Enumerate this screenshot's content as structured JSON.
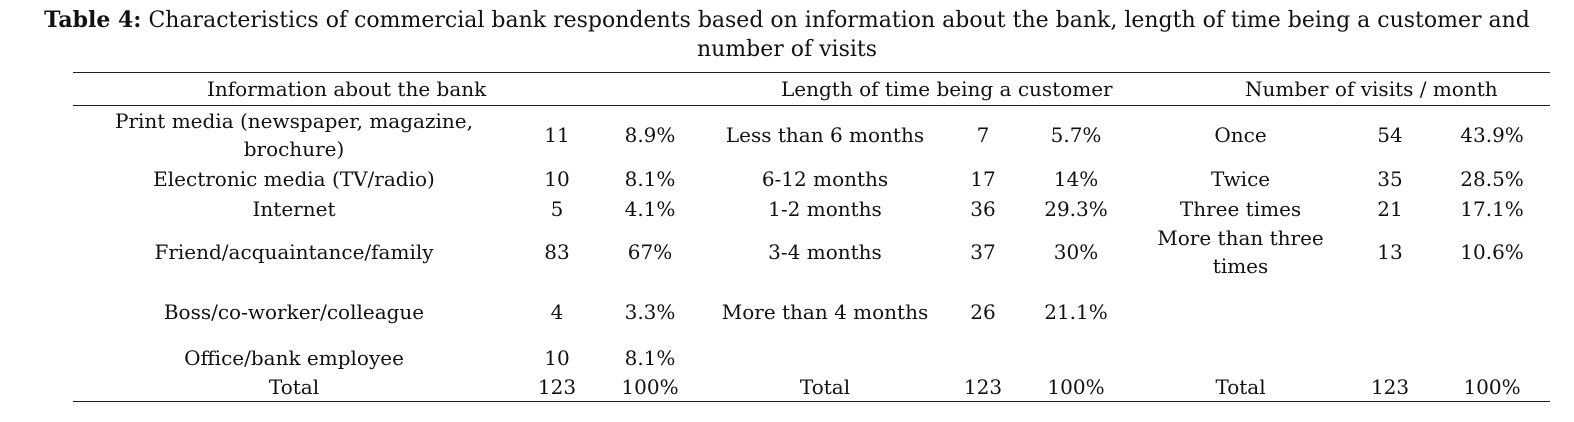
{
  "caption": {
    "label": "Table 4:",
    "text": "Characteristics of commercial bank respondents based on information about the bank, length of time being a customer and number of visits"
  },
  "headers": {
    "info": "Information about the bank",
    "length": "Length of time being a customer",
    "visits": "Number of visits / month"
  },
  "rows": [
    {
      "info_label": "Print media (newspaper, magazine, brochure)",
      "info_n": "11",
      "info_pct": "8.9%",
      "len_label": "Less than 6 months",
      "len_n": "7",
      "len_pct": "5.7%",
      "vis_label": "Once",
      "vis_n": "54",
      "vis_pct": "43.9%"
    },
    {
      "info_label": "Electronic media (TV/radio)",
      "info_n": "10",
      "info_pct": "8.1%",
      "len_label": "6-12 months",
      "len_n": "17",
      "len_pct": "14%",
      "vis_label": "Twice",
      "vis_n": "35",
      "vis_pct": "28.5%"
    },
    {
      "info_label": "Internet",
      "info_n": "5",
      "info_pct": "4.1%",
      "len_label": "1-2 months",
      "len_n": "36",
      "len_pct": "29.3%",
      "vis_label": "Three times",
      "vis_n": "21",
      "vis_pct": "17.1%"
    },
    {
      "info_label": "Friend/acquaintance/family",
      "info_n": "83",
      "info_pct": "67%",
      "len_label": "3-4 months",
      "len_n": "37",
      "len_pct": "30%",
      "vis_label": "More than three times",
      "vis_n": "13",
      "vis_pct": "10.6%"
    },
    {
      "info_label": "Boss/co-worker/colleague",
      "info_n": "4",
      "info_pct": "3.3%",
      "len_label": "More than 4 months",
      "len_n": "26",
      "len_pct": "21.1%",
      "vis_label": "",
      "vis_n": "",
      "vis_pct": ""
    },
    {
      "info_label": "Office/bank employee",
      "info_n": "10",
      "info_pct": "8.1%",
      "len_label": "",
      "len_n": "",
      "len_pct": "",
      "vis_label": "",
      "vis_n": "",
      "vis_pct": ""
    },
    {
      "info_label": "Total",
      "info_n": "123",
      "info_pct": "100%",
      "len_label": "Total",
      "len_n": "123",
      "len_pct": "100%",
      "vis_label": "Total",
      "vis_n": "123",
      "vis_pct": "100%"
    }
  ]
}
